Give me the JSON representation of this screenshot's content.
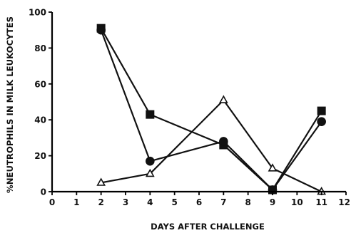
{
  "chart_data": {
    "type": "line",
    "title": "",
    "xlabel": "DAYS AFTER CHALLENGE",
    "ylabel": "%NEUTROPHILS IN MILK LEUKOCYTES",
    "xlim": [
      0,
      12
    ],
    "ylim": [
      0,
      100
    ],
    "x_ticks": [
      0,
      1,
      2,
      3,
      4,
      5,
      6,
      7,
      8,
      9,
      10,
      11,
      12
    ],
    "x_tick_labels": [
      "0",
      "1",
      "2",
      "3",
      "4",
      "5",
      "6",
      "7",
      "8",
      "9",
      "10",
      "11",
      "12"
    ],
    "y_ticks": [
      0,
      20,
      40,
      60,
      80,
      100
    ],
    "y_tick_labels": [
      "0",
      "20",
      "40",
      "60",
      "80",
      "100"
    ],
    "grid": false,
    "legend": false,
    "series": [
      {
        "marker": "square",
        "points": [
          [
            2,
            91
          ],
          [
            4,
            43
          ],
          [
            7,
            26
          ],
          [
            9,
            1
          ],
          [
            11,
            45
          ]
        ]
      },
      {
        "marker": "circle",
        "points": [
          [
            2,
            90
          ],
          [
            4,
            17
          ],
          [
            7,
            28
          ],
          [
            9,
            1
          ],
          [
            11,
            39
          ]
        ]
      },
      {
        "marker": "triangle-open",
        "points": [
          [
            2,
            5
          ],
          [
            4,
            10
          ],
          [
            7,
            51
          ],
          [
            9,
            13
          ],
          [
            11,
            0
          ]
        ]
      }
    ]
  }
}
